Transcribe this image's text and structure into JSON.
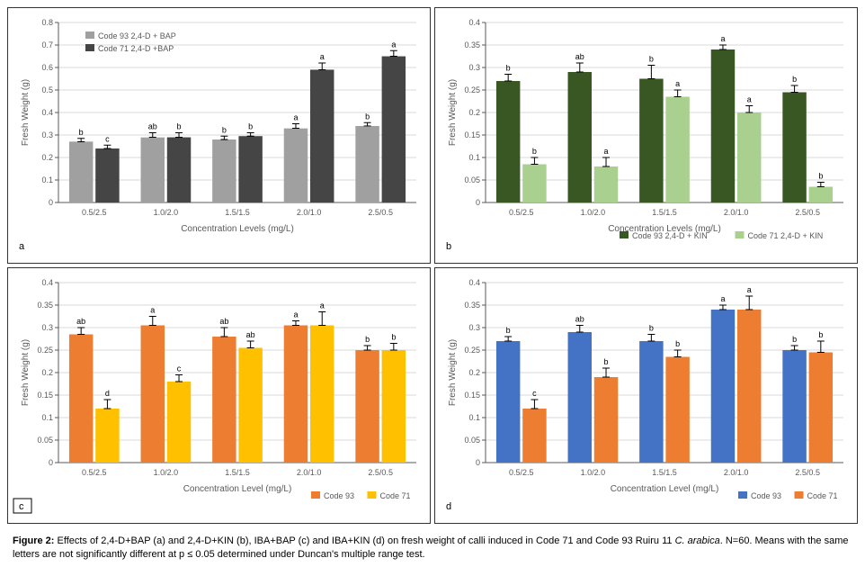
{
  "caption": {
    "label": "Figure 2:",
    "text_before_italic": " Effects of 2,4-D+BAP (a) and 2,4-D+KIN (b), IBA+BAP (c) and IBA+KIN (d) on fresh weight of calli induced in Code 71 and Code 93 Ruiru 11 ",
    "italic": "C. arabica",
    "text_after_italic": ". N=60. Means with the same letters are not significantly different at p ≤ 0.05 determined under Duncan's multiple range test."
  },
  "common": {
    "categories": [
      "0.5/2.5",
      "1.0/2.0",
      "1.5/1.5",
      "2.0/1.0",
      "2.5/0.5"
    ],
    "ylabel": "Fresh Weight (g)",
    "label_fontsize": 10,
    "tick_fontsize": 9,
    "letter_fontsize": 9,
    "grid_color": "#d9d9d9",
    "background_color": "#ffffff",
    "bar_gap": 0.05,
    "error_cap": 4
  },
  "charts": {
    "a": {
      "panel_label": "a",
      "xlabel": "Concentration Levels (mg/L)",
      "legend_pos": "top-inside",
      "ylim": [
        0,
        0.8
      ],
      "ytick_step": 0.1,
      "series": [
        {
          "name": "Code 93 2,4-D + BAP",
          "color": "#c0c0c0",
          "hatch": "horiz",
          "hatch_color": "#808080",
          "values": [
            0.27,
            0.29,
            0.28,
            0.33,
            0.34
          ],
          "errors": [
            0.015,
            0.02,
            0.015,
            0.02,
            0.015
          ],
          "letters": [
            "b",
            "ab",
            "b",
            "a",
            "b"
          ]
        },
        {
          "name": "Code 71 2,4-D +BAP",
          "color": "#5a5a5a",
          "hatch": "horiz",
          "hatch_color": "#303030",
          "values": [
            0.24,
            0.29,
            0.295,
            0.59,
            0.65
          ],
          "errors": [
            0.015,
            0.02,
            0.015,
            0.03,
            0.025
          ],
          "letters": [
            "c",
            "b",
            "b",
            "a",
            "a"
          ]
        }
      ]
    },
    "b": {
      "panel_label": "b",
      "xlabel": "Concentration Levels (mg/L)",
      "legend_pos": "bottom-right",
      "ylim": [
        0,
        0.4
      ],
      "ytick_step": 0.05,
      "series": [
        {
          "name": "Code 93 2,4-D + KIN",
          "color": "#385723",
          "values": [
            0.27,
            0.29,
            0.275,
            0.34,
            0.245
          ],
          "errors": [
            0.015,
            0.02,
            0.03,
            0.01,
            0.015
          ],
          "letters": [
            "b",
            "ab",
            "b",
            "a",
            "b"
          ]
        },
        {
          "name": "Code 71 2,4-D + KIN",
          "color": "#a9d08e",
          "values": [
            0.085,
            0.08,
            0.235,
            0.2,
            0.035
          ],
          "errors": [
            0.015,
            0.02,
            0.015,
            0.015,
            0.01
          ],
          "letters": [
            "b",
            "a",
            "a",
            "a",
            "b"
          ]
        }
      ]
    },
    "c": {
      "panel_label": "c",
      "xlabel": "Concentration Level (mg/L)",
      "legend_pos": "bottom-right",
      "ylim": [
        0,
        0.4
      ],
      "ytick_step": 0.05,
      "series": [
        {
          "name": "Code 93",
          "color": "#ed7d31",
          "values": [
            0.285,
            0.305,
            0.28,
            0.305,
            0.25
          ],
          "errors": [
            0.015,
            0.02,
            0.02,
            0.01,
            0.01
          ],
          "letters": [
            "ab",
            "a",
            "ab",
            "a",
            "b"
          ]
        },
        {
          "name": "Code 71",
          "color": "#ffc000",
          "values": [
            0.12,
            0.18,
            0.255,
            0.305,
            0.25
          ],
          "errors": [
            0.02,
            0.015,
            0.015,
            0.03,
            0.015
          ],
          "letters": [
            "d",
            "c",
            "ab",
            "a",
            "b"
          ]
        }
      ]
    },
    "d": {
      "panel_label": "d",
      "xlabel": "Concentration Level (mg/L)",
      "legend_pos": "bottom-right",
      "ylim": [
        0,
        0.4
      ],
      "ytick_step": 0.05,
      "series": [
        {
          "name": "Code 93",
          "color": "#4472c4",
          "values": [
            0.27,
            0.29,
            0.27,
            0.34,
            0.25
          ],
          "errors": [
            0.01,
            0.015,
            0.015,
            0.01,
            0.01
          ],
          "letters": [
            "b",
            "ab",
            "b",
            "a",
            "b"
          ]
        },
        {
          "name": "Code 71",
          "color": "#ed7d31",
          "values": [
            0.12,
            0.19,
            0.235,
            0.34,
            0.245
          ],
          "errors": [
            0.02,
            0.02,
            0.015,
            0.03,
            0.025
          ],
          "letters": [
            "c",
            "b",
            "b",
            "a",
            "b"
          ]
        }
      ]
    }
  }
}
